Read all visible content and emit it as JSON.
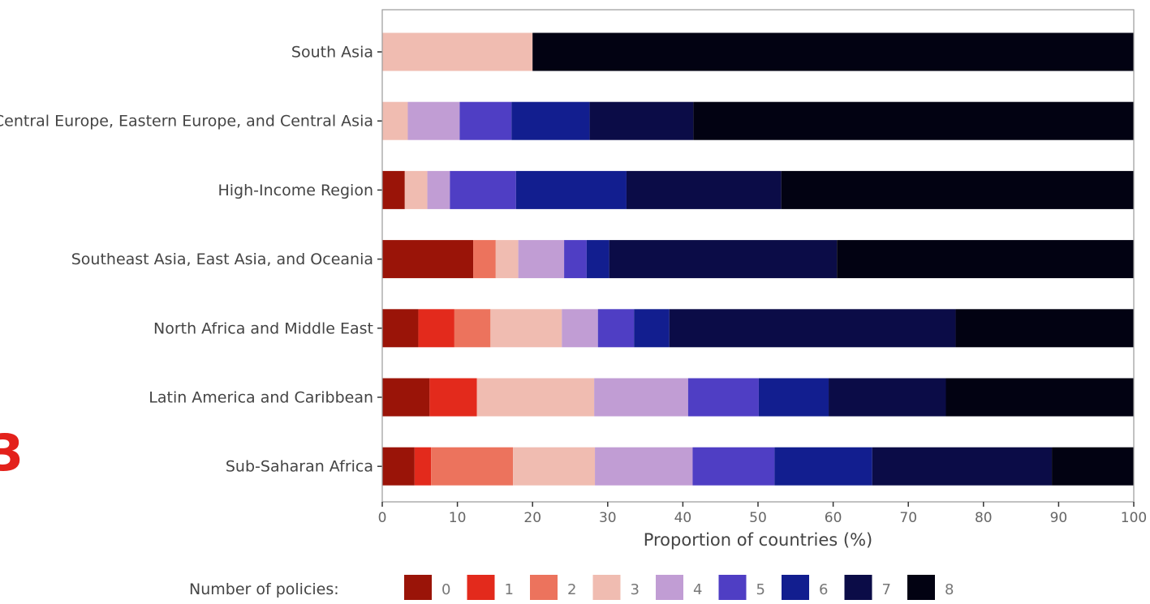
{
  "chart_data": {
    "type": "bar",
    "orientation": "horizontal",
    "stacked": true,
    "xlabel": "Proportion of countries (%)",
    "ylabel": "",
    "xlim": [
      0,
      100
    ],
    "xticks": [
      0,
      10,
      20,
      30,
      40,
      50,
      60,
      70,
      80,
      90,
      100
    ],
    "grid": false,
    "legend_title": "Number of policies:",
    "legend_position": "bottom",
    "categories": [
      "South Asia",
      "Central Europe, Eastern Europe, and Central Asia",
      "High-Income Region",
      "Southeast Asia, East Asia, and Oceania",
      "North Africa and Middle East",
      "Latin America and Caribbean",
      "Sub-Saharan Africa"
    ],
    "series": [
      {
        "name": "0",
        "color": "#9a1408",
        "values": [
          0,
          0,
          3.0,
          12.1,
          4.8,
          6.3,
          4.3
        ]
      },
      {
        "name": "1",
        "color": "#e32a1c",
        "values": [
          0,
          0,
          0,
          0,
          4.8,
          6.3,
          2.2
        ]
      },
      {
        "name": "2",
        "color": "#ec735d",
        "values": [
          0,
          0,
          0,
          3.0,
          4.8,
          0,
          10.9
        ]
      },
      {
        "name": "3",
        "color": "#f0bcb1",
        "values": [
          20.0,
          3.4,
          3.0,
          3.0,
          9.5,
          15.6,
          10.9
        ]
      },
      {
        "name": "4",
        "color": "#c19dd4",
        "values": [
          0,
          6.9,
          3.0,
          6.1,
          4.8,
          12.5,
          13.0
        ]
      },
      {
        "name": "5",
        "color": "#4f3ec4",
        "values": [
          0,
          6.9,
          8.8,
          3.0,
          4.8,
          9.4,
          10.9
        ]
      },
      {
        "name": "6",
        "color": "#121e8f",
        "values": [
          0,
          10.4,
          14.7,
          3.0,
          4.7,
          9.3,
          13.0
        ]
      },
      {
        "name": "7",
        "color": "#0b0c47",
        "values": [
          0,
          13.8,
          20.6,
          30.3,
          38.1,
          15.6,
          23.9
        ]
      },
      {
        "name": "8",
        "color": "#020212",
        "values": [
          80.0,
          58.6,
          46.9,
          39.5,
          23.7,
          25.0,
          10.9
        ]
      }
    ]
  }
}
